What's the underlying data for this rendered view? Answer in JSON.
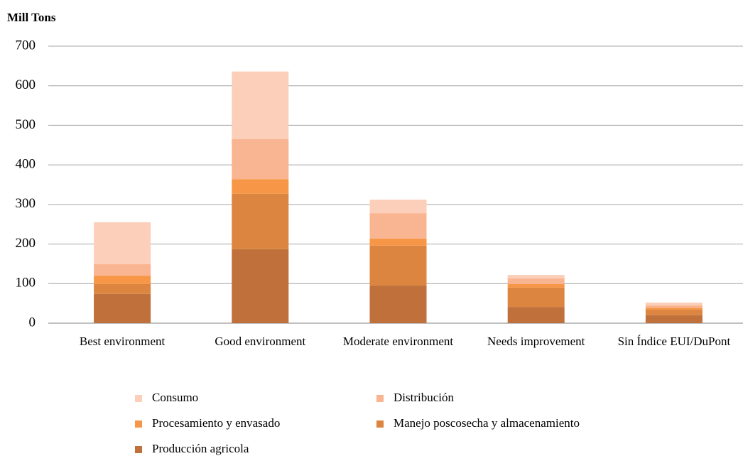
{
  "chart_data": {
    "type": "stacked_bar",
    "title": "Mill Tons",
    "categories": [
      "Best environment",
      "Good environment",
      "Moderate environment",
      "Needs improvement",
      "Sin Índice EUI/DuPont"
    ],
    "series": [
      {
        "name": "Producción agricola",
        "color": "#c0703a",
        "values": [
          74,
          187,
          95,
          41,
          20
        ]
      },
      {
        "name": "Manejo poscosecha y almacenamiento",
        "color": "#db8540",
        "values": [
          25,
          140,
          101,
          49,
          14
        ]
      },
      {
        "name": "Procesamiento y envasado",
        "color": "#f79646",
        "values": [
          21,
          37,
          18,
          9,
          5
        ]
      },
      {
        "name": "Distribución",
        "color": "#f9b591",
        "values": [
          29,
          101,
          64,
          14,
          6
        ]
      },
      {
        "name": "Consumo",
        "color": "#fbcfb9",
        "values": [
          106,
          171,
          34,
          9,
          7
        ]
      }
    ],
    "ylim": [
      0,
      700
    ],
    "yticks": [
      0,
      100,
      200,
      300,
      400,
      500,
      600,
      700
    ],
    "grid": true
  }
}
